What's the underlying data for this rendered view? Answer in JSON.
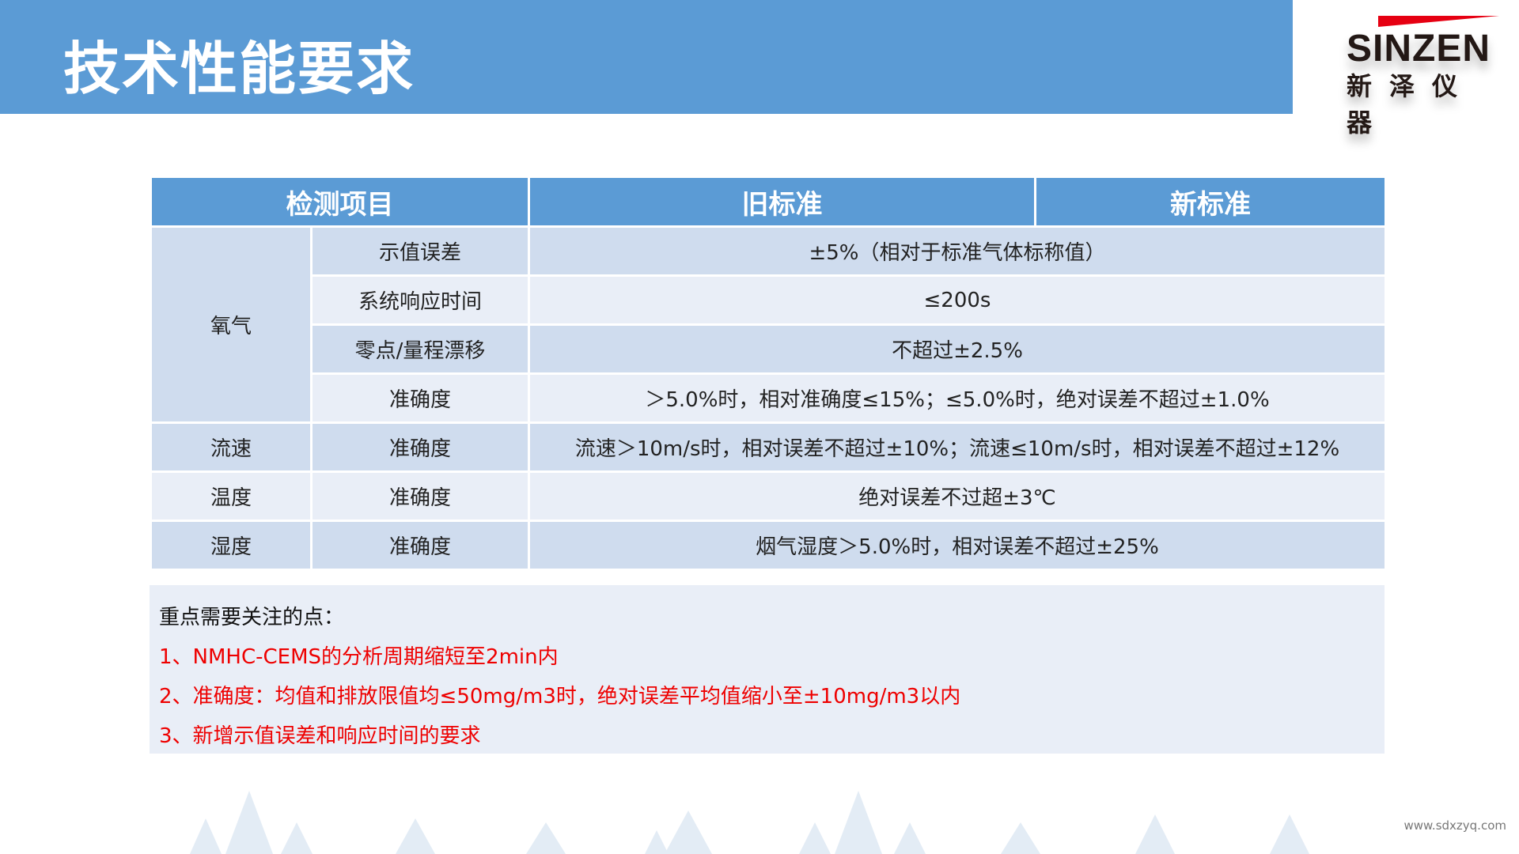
{
  "header": {
    "title": "技术性能要求"
  },
  "logo": {
    "en": "SINZEN",
    "cn": "新泽仪器"
  },
  "table": {
    "headers": [
      "检测项目",
      "旧标准",
      "新标准"
    ],
    "rows": [
      {
        "group": "氧气",
        "item": "示值误差",
        "value": "±5%（相对于标准气体标称值）"
      },
      {
        "item": "系统响应时间",
        "value": "≤200s"
      },
      {
        "item": "零点/量程漂移",
        "value": "不超过±2.5%"
      },
      {
        "item": "准确度",
        "value": "＞5.0%时，相对准确度≤15%；≤5.0%时，绝对误差不超过±1.0%"
      },
      {
        "group": "流速",
        "item": "准确度",
        "value": "流速＞10m/s时，相对误差不超过±10%；流速≤10m/s时，相对误差不超过±12%"
      },
      {
        "group": "温度",
        "item": "准确度",
        "value": "绝对误差不过超±3℃"
      },
      {
        "group": "湿度",
        "item": "准确度",
        "value": "烟气湿度＞5.0%时，相对误差不超过±25%"
      }
    ]
  },
  "notes": {
    "heading": "重点需要关注的点：",
    "items": [
      "1、NMHC-CEMS的分析周期缩短至2min内",
      "2、准确度：均值和排放限值均≤50mg/m3时，绝对误差平均值缩小至±10mg/m3以内",
      "3、新增示值误差和响应时间的要求"
    ]
  },
  "footer": {
    "url": "www.sdxzyq.com"
  },
  "colors": {
    "primary": "#5b9bd5",
    "row_dark": "#cfdcee",
    "row_light": "#e9eef7",
    "highlight": "#ff0000"
  }
}
